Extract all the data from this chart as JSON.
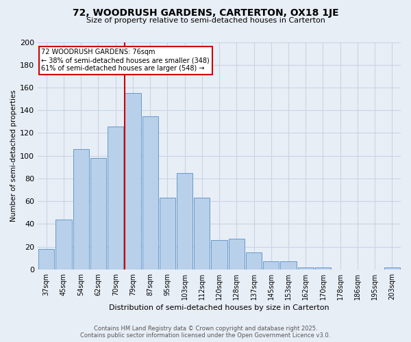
{
  "title_line1": "72, WOODRUSH GARDENS, CARTERTON, OX18 1JE",
  "title_line2": "Size of property relative to semi-detached houses in Carterton",
  "xlabel": "Distribution of semi-detached houses by size in Carterton",
  "ylabel": "Number of semi-detached properties",
  "categories": [
    "37sqm",
    "45sqm",
    "54sqm",
    "62sqm",
    "70sqm",
    "79sqm",
    "87sqm",
    "95sqm",
    "103sqm",
    "112sqm",
    "120sqm",
    "128sqm",
    "137sqm",
    "145sqm",
    "153sqm",
    "162sqm",
    "170sqm",
    "178sqm",
    "186sqm",
    "195sqm",
    "203sqm"
  ],
  "values": [
    18,
    44,
    106,
    98,
    126,
    155,
    135,
    63,
    85,
    63,
    26,
    27,
    15,
    7,
    7,
    2,
    2,
    0,
    0,
    0,
    2
  ],
  "bar_color": "#b8d0ea",
  "bar_edge_color": "#6699cc",
  "vline_index": 5,
  "annotation_title": "72 WOODRUSH GARDENS: 76sqm",
  "annotation_line1": "← 38% of semi-detached houses are smaller (348)",
  "annotation_line2": "61% of semi-detached houses are larger (548) →",
  "annotation_box_color": "#ffffff",
  "annotation_box_edge": "#cc0000",
  "vline_color": "#cc0000",
  "grid_color": "#c8d4e4",
  "background_color": "#e8eef6",
  "footer_line1": "Contains HM Land Registry data © Crown copyright and database right 2025.",
  "footer_line2": "Contains public sector information licensed under the Open Government Licence v3.0.",
  "ylim": [
    0,
    200
  ],
  "yticks": [
    0,
    20,
    40,
    60,
    80,
    100,
    120,
    140,
    160,
    180,
    200
  ]
}
